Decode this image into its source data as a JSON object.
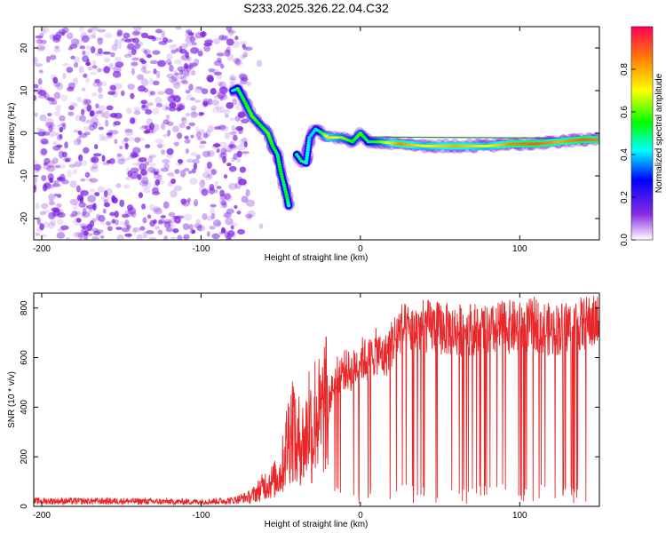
{
  "figure_title": "S233.2025.326.22.04.C32",
  "colors": {
    "snr_line": "#e8282a",
    "fit_line": "#2a8a2a",
    "scatter_base": "#7a1ce0"
  },
  "chart_data": [
    {
      "type": "heatmap",
      "title": "S233.2025.326.22.04.C32",
      "xlabel": "Height of straight line (km)",
      "ylabel": "Frequency (Hz)",
      "xlim": [
        -205,
        150
      ],
      "ylim": [
        -25,
        25
      ],
      "xticks": [
        -200,
        -100,
        0,
        100
      ],
      "yticks": [
        -20,
        -10,
        0,
        10,
        20
      ],
      "colorbar": {
        "label": "Normalized spectral amplitude",
        "range": [
          0,
          1
        ],
        "ticks": [
          0.0,
          0.2,
          0.4,
          0.6,
          0.8
        ],
        "tick_labels": [
          "0.0",
          "0.2",
          "0.4",
          "0.6",
          "0.8"
        ],
        "stops": [
          "#ffffff",
          "#8a2be2",
          "#0000ff",
          "#00ffff",
          "#00ff00",
          "#ffff00",
          "#ff8800",
          "#ff0055"
        ]
      },
      "noise_region_x": [
        -205,
        -72
      ],
      "ridge_points": [
        {
          "x": -80,
          "y": 10,
          "amp": 0.45
        },
        {
          "x": -77,
          "y": 10.5,
          "amp": 0.5
        },
        {
          "x": -72,
          "y": 7,
          "amp": 0.55
        },
        {
          "x": -68,
          "y": 4,
          "amp": 0.6
        },
        {
          "x": -63,
          "y": 2,
          "amp": 0.55
        },
        {
          "x": -58,
          "y": 0,
          "amp": 0.6
        },
        {
          "x": -55,
          "y": -3,
          "amp": 0.55
        },
        {
          "x": -52,
          "y": -5,
          "amp": 0.5
        },
        {
          "x": -50,
          "y": -9,
          "amp": 0.55
        },
        {
          "x": -48,
          "y": -12,
          "amp": 0.5
        },
        {
          "x": -46,
          "y": -15,
          "amp": 0.55
        },
        {
          "x": -45,
          "y": -17,
          "amp": 0.45
        },
        {
          "x": -40,
          "y": -5,
          "amp": 0.5
        },
        {
          "x": -37,
          "y": -6.5,
          "amp": 0.5
        },
        {
          "x": -34,
          "y": -7,
          "amp": 0.45
        },
        {
          "x": -32,
          "y": -1,
          "amp": 0.4
        },
        {
          "x": -28,
          "y": 1,
          "amp": 0.4
        },
        {
          "x": -20,
          "y": -1,
          "amp": 0.75
        },
        {
          "x": -12,
          "y": -1,
          "amp": 0.65
        },
        {
          "x": -5,
          "y": -2,
          "amp": 0.55
        },
        {
          "x": 0,
          "y": 0,
          "amp": 0.6
        },
        {
          "x": 5,
          "y": -2,
          "amp": 0.5
        },
        {
          "x": 12,
          "y": -2,
          "amp": 0.6
        },
        {
          "x": 25,
          "y": -2.5,
          "amp": 0.85
        },
        {
          "x": 40,
          "y": -3,
          "amp": 0.7
        },
        {
          "x": 60,
          "y": -3,
          "amp": 0.8
        },
        {
          "x": 80,
          "y": -3,
          "amp": 0.7
        },
        {
          "x": 95,
          "y": -2.5,
          "amp": 0.85
        },
        {
          "x": 110,
          "y": -2.5,
          "amp": 0.9
        },
        {
          "x": 125,
          "y": -2,
          "amp": 0.8
        },
        {
          "x": 140,
          "y": -1.5,
          "amp": 0.9
        },
        {
          "x": 150,
          "y": -1.5,
          "amp": 0.85
        }
      ],
      "fit_line": {
        "x": [
          -25,
          150
        ],
        "y": [
          -0.8,
          -1.2
        ]
      }
    },
    {
      "type": "line",
      "title": "",
      "xlabel": "Height of straight line (km)",
      "ylabel": "SNR (10 * v/v)",
      "xlim": [
        -205,
        150
      ],
      "ylim": [
        0,
        860
      ],
      "xticks": [
        -200,
        -100,
        0,
        100
      ],
      "yticks": [
        0,
        200,
        400,
        600,
        800
      ],
      "series": [
        {
          "name": "SNR",
          "x": [
            -205,
            -180,
            -150,
            -120,
            -100,
            -80,
            -70,
            -65,
            -60,
            -55,
            -50,
            -45,
            -42,
            -40,
            -38,
            -35,
            -32,
            -30,
            -28,
            -25,
            -22,
            -20,
            -15,
            -10,
            -5,
            0,
            5,
            10,
            15,
            20,
            25,
            30,
            40,
            50,
            60,
            70,
            80,
            90,
            100,
            110,
            120,
            130,
            140,
            150
          ],
          "values": [
            25,
            25,
            25,
            22,
            22,
            28,
            45,
            80,
            120,
            140,
            180,
            400,
            470,
            280,
            400,
            330,
            520,
            350,
            560,
            460,
            590,
            460,
            570,
            600,
            590,
            650,
            640,
            680,
            650,
            720,
            780,
            770,
            790,
            780,
            770,
            780,
            760,
            790,
            780,
            800,
            770,
            790,
            800,
            810
          ]
        }
      ]
    }
  ]
}
